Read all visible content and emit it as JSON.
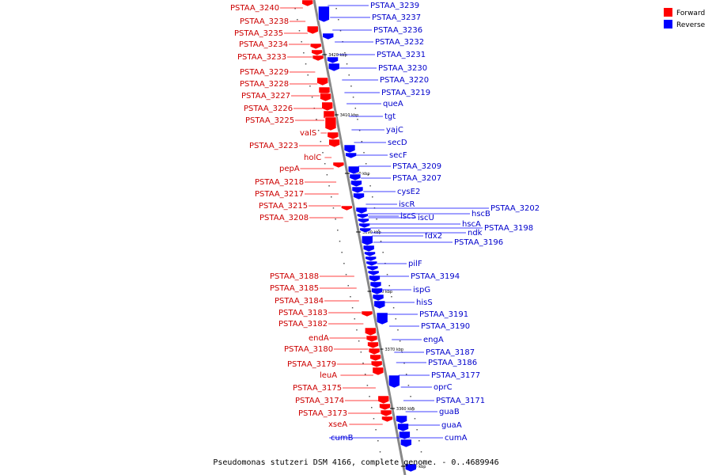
{
  "caption": "Pseudomonas stutzeri DSM 4166, complete genome. - 0..4689946",
  "legend": [
    {
      "label": "Forward",
      "color": "#ff0000"
    },
    {
      "label": "Reverse",
      "color": "#0000ff"
    }
  ],
  "colors": {
    "forward": "#ff0000",
    "reverse": "#0000ff",
    "forward_label": "#cc0000",
    "reverse_label": "#0000cc",
    "backbone": "#888888"
  },
  "ticks": [
    "3420 kbp",
    "3410 kbp",
    "3400 kbp",
    "3390 kbp",
    "3380 kbp",
    "3370 kbp",
    "3360 kbp",
    "3350 kbp"
  ],
  "forward_genes": [
    "PSTAA_3240",
    "PSTAA_3238",
    "PSTAA_3235",
    "PSTAA_3234",
    "PSTAA_3233",
    "PSTAA_3229",
    "PSTAA_3228",
    "PSTAA_3227",
    "PSTAA_3226",
    "PSTAA_3225",
    "valS",
    "PSTAA_3223",
    "holC",
    "pepA",
    "PSTAA_3218",
    "PSTAA_3217",
    "PSTAA_3215",
    "PSTAA_3208",
    "PSTAA_3188",
    "PSTAA_3185",
    "PSTAA_3184",
    "PSTAA_3183",
    "PSTAA_3182",
    "endA",
    "PSTAA_3180",
    "PSTAA_3179",
    "leuA",
    "PSTAA_3175",
    "PSTAA_3174",
    "PSTAA_3173",
    "xseA"
  ],
  "reverse_genes": [
    "PSTAA_3239",
    "PSTAA_3237",
    "PSTAA_3236",
    "PSTAA_3232",
    "PSTAA_3231",
    "PSTAA_3230",
    "PSTAA_3220",
    "PSTAA_3219",
    "queA",
    "tgt",
    "yajC",
    "secD",
    "secF",
    "PSTAA_3209",
    "PSTAA_3207",
    "cysE2",
    "iscR",
    "iscS",
    "iscU",
    "hscB",
    "PSTAA_3202",
    "hscA",
    "PSTAA_3198",
    "ndk",
    "fdx2",
    "PSTAA_3196",
    "pilF",
    "PSTAA_3194",
    "ispG",
    "hisS",
    "PSTAA_3191",
    "PSTAA_3190",
    "engA",
    "PSTAA_3187",
    "PSTAA_3186",
    "PSTAA_3177",
    "oprC",
    "PSTAA_3171",
    "guaB",
    "guaA",
    "cumA",
    "cumB"
  ]
}
